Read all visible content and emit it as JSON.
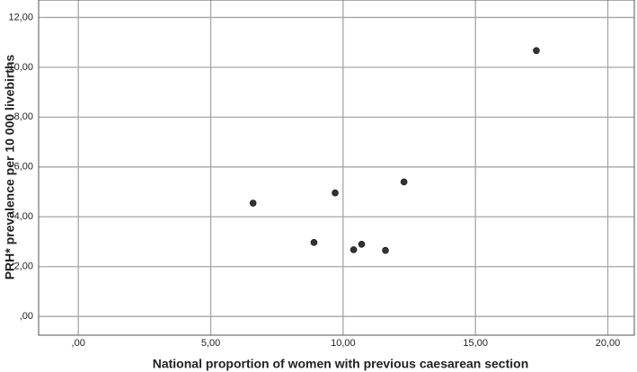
{
  "chart_data": {
    "type": "scatter",
    "x_label": "National proportion of women with previous caesarean section",
    "y_label": "PRH* prevalence per 10 000 livebirths",
    "x": [
      6.6,
      8.9,
      9.7,
      10.4,
      10.7,
      11.6,
      12.3,
      17.3
    ],
    "y": [
      4.55,
      2.97,
      4.96,
      2.68,
      2.9,
      2.65,
      5.4,
      10.67
    ],
    "color": "#333333",
    "xlim": [
      -1.5,
      21
    ],
    "ylim": [
      -0.75,
      12.7
    ],
    "xticks": [
      {
        "value": 0,
        "label": ",00"
      },
      {
        "value": 5,
        "label": "5,00"
      },
      {
        "value": 10,
        "label": "10,00"
      },
      {
        "value": 15,
        "label": "15,00"
      },
      {
        "value": 20,
        "label": "20,00"
      }
    ],
    "yticks": [
      {
        "value": 0,
        "label": ",00"
      },
      {
        "value": 2,
        "label": "2,00"
      },
      {
        "value": 4,
        "label": "4,00"
      },
      {
        "value": 6,
        "label": "6,00"
      },
      {
        "value": 8,
        "label": "8,00"
      },
      {
        "value": 10,
        "label": "10,00"
      },
      {
        "value": 12,
        "label": "12,00"
      }
    ],
    "grid": true
  }
}
